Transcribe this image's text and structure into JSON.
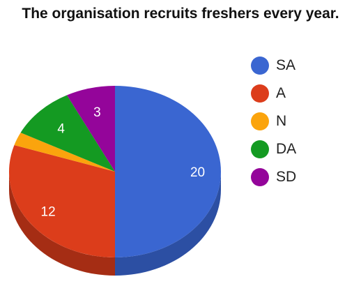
{
  "chart_data": {
    "type": "pie",
    "title": "The organisation recruits freshers every year.",
    "categories": [
      "SA",
      "A",
      "N",
      "DA",
      "SD"
    ],
    "values": [
      20,
      12,
      1,
      4,
      3
    ],
    "data_labels": [
      "20",
      "12",
      "",
      "4",
      "3"
    ],
    "colors": [
      "#3a66d1",
      "#dc3d1b",
      "#fba40d",
      "#149a22",
      "#94059a"
    ],
    "side_colors": [
      "#2c4fa3",
      "#a52d14",
      "#c27f0a",
      "#0e731a",
      "#6e0473"
    ],
    "style": "3d",
    "legend_position": "right"
  }
}
